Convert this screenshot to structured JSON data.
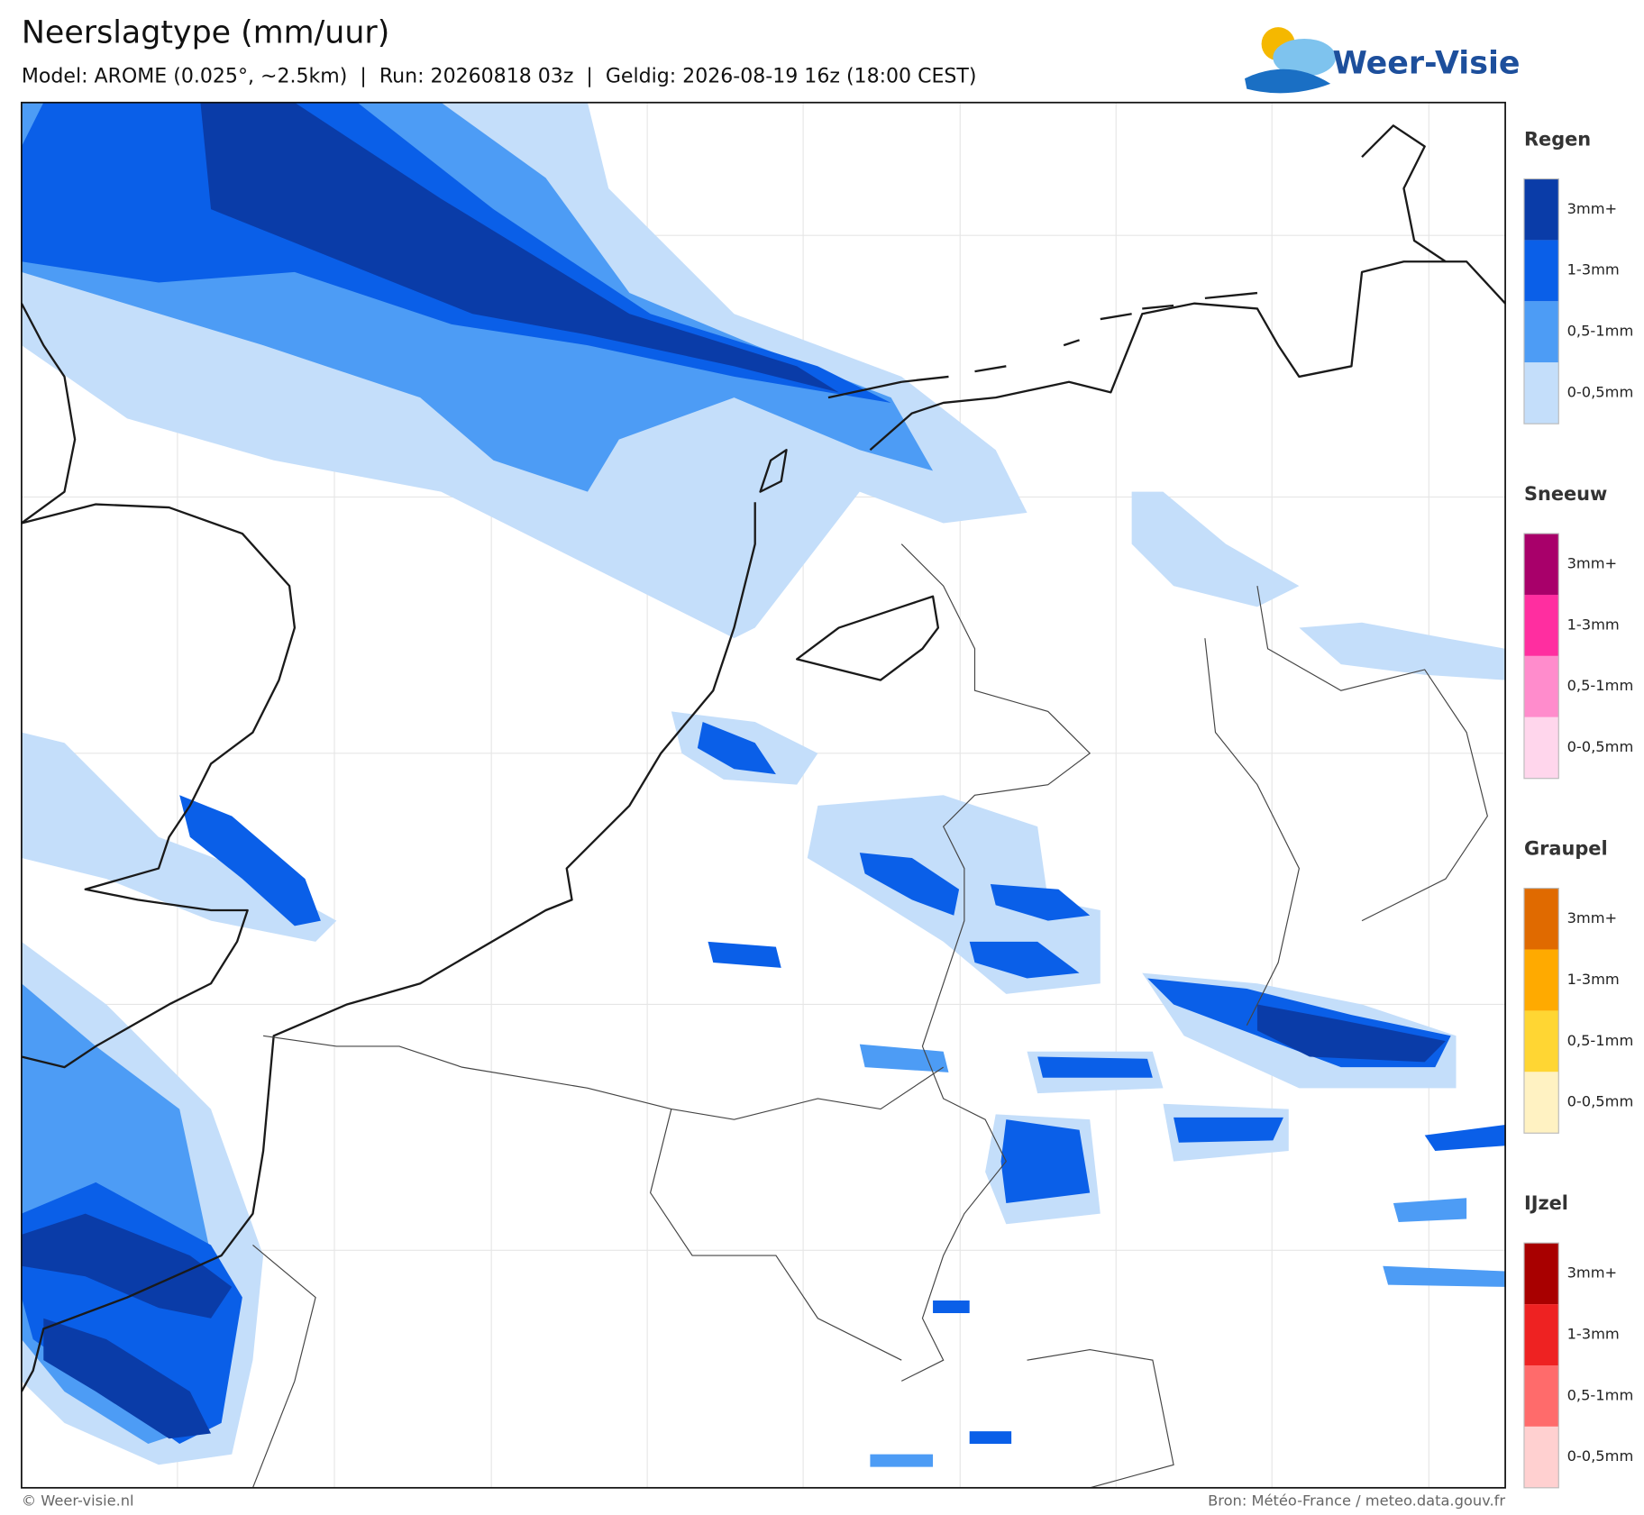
{
  "header": {
    "title": "Neerslagtype (mm/uur)",
    "subtitle": "Model: AROME (0.025°, ~2.5km)  |  Run: 20260818 03z  |  Geldig: 2026-08-19 16z (18:00 CEST)",
    "logo": "Weer-Visie"
  },
  "legend": [
    {
      "title": "Regen",
      "items": [
        {
          "label": "3mm+",
          "color": "#0a3ca8"
        },
        {
          "label": "1-3mm",
          "color": "#0a5fe8"
        },
        {
          "label": "0,5-1mm",
          "color": "#4d9cf5"
        },
        {
          "label": "0-0,5mm",
          "color": "#c4defa"
        }
      ]
    },
    {
      "title": "Sneeuw",
      "items": [
        {
          "label": "3mm+",
          "color": "#a8006a"
        },
        {
          "label": "1-3mm",
          "color": "#ff2ea0"
        },
        {
          "label": "0,5-1mm",
          "color": "#ff8ccc"
        },
        {
          "label": "0-0,5mm",
          "color": "#ffd6ec"
        }
      ]
    },
    {
      "title": "Graupel",
      "items": [
        {
          "label": "3mm+",
          "color": "#e06a00"
        },
        {
          "label": "1-3mm",
          "color": "#ffaa00"
        },
        {
          "label": "0,5-1mm",
          "color": "#ffd633"
        },
        {
          "label": "0-0,5mm",
          "color": "#fff2c2"
        }
      ]
    },
    {
      "title": "IJzel",
      "items": [
        {
          "label": "3mm+",
          "color": "#a80000"
        },
        {
          "label": "1-3mm",
          "color": "#ee2222"
        },
        {
          "label": "0,5-1mm",
          "color": "#ff6b6b"
        },
        {
          "label": "0-0,5mm",
          "color": "#ffd0d0"
        }
      ]
    }
  ],
  "footer": {
    "left": "© Weer-visie.nl",
    "right": "Bron: Météo-France / meteo.data.gouv.fr"
  }
}
